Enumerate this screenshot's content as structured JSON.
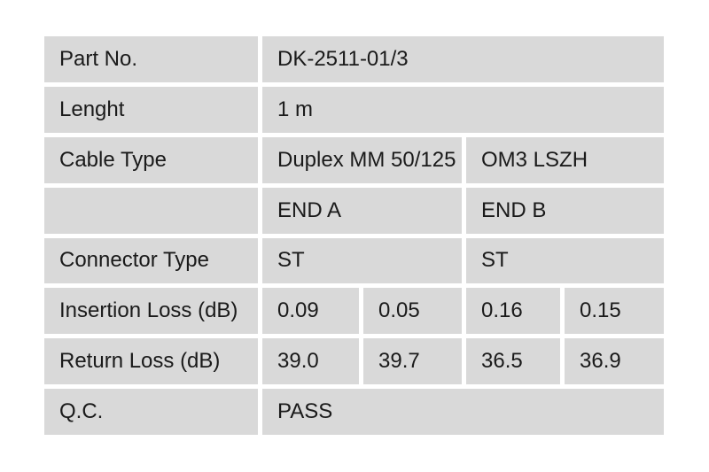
{
  "document": {
    "background": "#ffffff",
    "cell_background": "#d9d9d9",
    "grid_gap_color": "#ffffff",
    "text_color": "#1a1a1a"
  },
  "table": {
    "rows": [
      {
        "label": "Part No.",
        "cells": [
          "DK-2511-01/3"
        ]
      },
      {
        "label": "Lenght",
        "cells": [
          "1 m"
        ]
      },
      {
        "label": "Cable Type",
        "cells": [
          "Duplex MM 50/125",
          "OM3 LSZH"
        ]
      },
      {
        "label": "",
        "cells": [
          "END A",
          "END B"
        ]
      },
      {
        "label": "Connector Type",
        "cells": [
          "ST",
          "ST"
        ]
      },
      {
        "label": "Insertion Loss (dB)",
        "cells": [
          "0.09",
          "0.05",
          "0.16",
          "0.15"
        ]
      },
      {
        "label": "Return Loss (dB)",
        "cells": [
          "39.0",
          "39.7",
          "36.5",
          "36.9"
        ]
      },
      {
        "label": "Q.C.",
        "cells": [
          "PASS"
        ]
      }
    ]
  }
}
